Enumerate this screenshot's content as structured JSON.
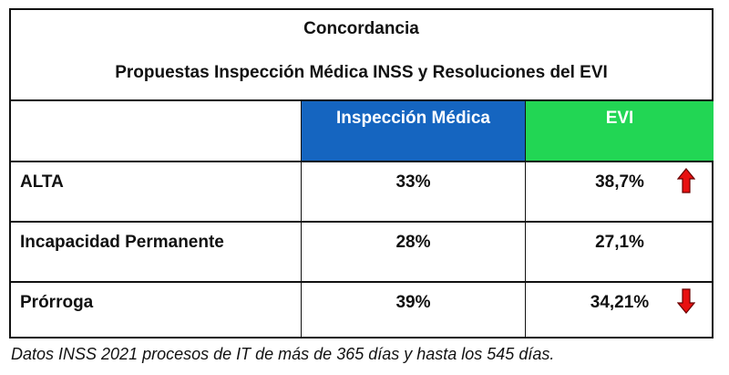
{
  "title": "Concordancia",
  "subtitle": "Propuestas Inspección Médica INSS y Resoluciones del EVI",
  "columns": [
    "",
    "Inspección Médica",
    "EVI"
  ],
  "rows": [
    {
      "label": "ALTA",
      "inspeccion": "33%",
      "evi": "38,7%",
      "trend": "up"
    },
    {
      "label": "Incapacidad Permanente",
      "inspeccion": "28%",
      "evi": "27,1%",
      "trend": "none"
    },
    {
      "label": "Prórroga",
      "inspeccion": "39%",
      "evi": "34,21%",
      "trend": "down"
    }
  ],
  "footnote": "Datos INSS 2021 procesos de IT de más de 365 días y hasta los 545 días.",
  "colors": {
    "inspeccion_header": "#1565c0",
    "evi_header": "#22d654",
    "arrow": "#e81010"
  }
}
